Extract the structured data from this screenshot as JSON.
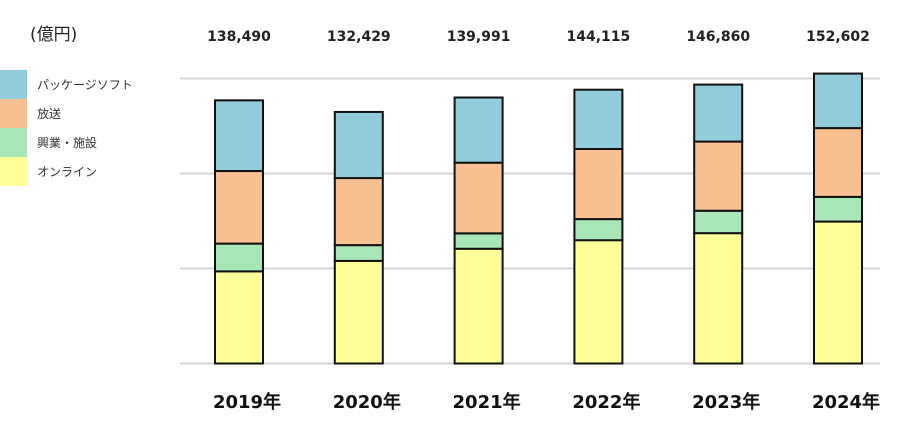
{
  "chart_data": {
    "type": "bar",
    "stacked": true,
    "unit_label": "(億円)",
    "categories": [
      "2019年",
      "2020年",
      "2021年",
      "2022年",
      "2023年",
      "2024年"
    ],
    "totals": [
      "138,490",
      "132,429",
      "139,991",
      "144,115",
      "146,860",
      "152,602"
    ],
    "ylim": [
      0,
      150000
    ],
    "gridlines": [
      0,
      50000,
      100000,
      150000
    ],
    "y_tick_labels_shown": false,
    "grid": true,
    "legend_position": "left",
    "series": [
      {
        "name": "オンライン",
        "color": "#ffff99",
        "values": [
          48500,
          54000,
          60400,
          64900,
          68600,
          74700
        ]
      },
      {
        "name": "興業・施設",
        "color": "#a8e6b8",
        "values": [
          14600,
          8300,
          8100,
          11100,
          11800,
          13000
        ]
      },
      {
        "name": "放送",
        "color": "#f8bf90",
        "values": [
          38200,
          35300,
          37200,
          36900,
          36400,
          36200
        ]
      },
      {
        "name": "パッケージソフト",
        "color": "#92cbdc",
        "values": [
          37200,
          34800,
          34300,
          31200,
          30000,
          28700
        ]
      }
    ]
  }
}
